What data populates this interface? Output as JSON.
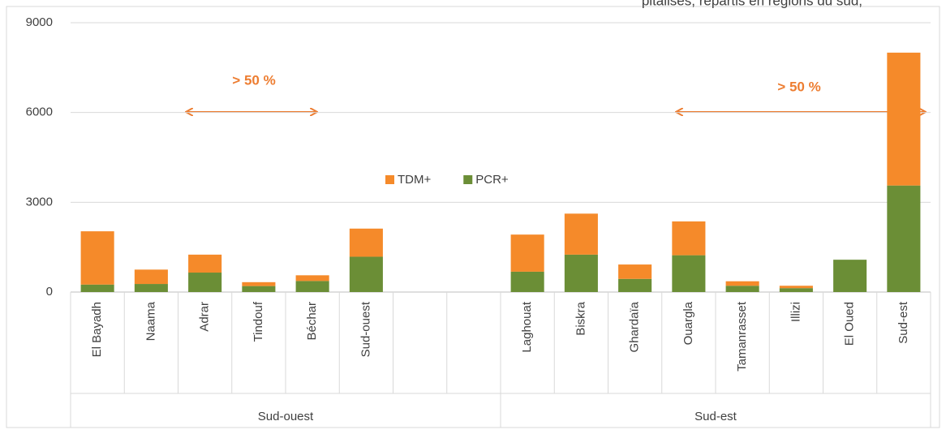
{
  "chart_data": {
    "type": "stacked_bar",
    "title": "pitalisés, répartis en régions du sud,",
    "categories": [
      "El Bayadh",
      "Naama",
      "Adrar",
      "Tindouf",
      "Béchar",
      "Sud-ouest",
      null,
      null,
      "Laghouat",
      "Biskra",
      "Ghardaïa",
      "Ouargla",
      "Tamanrasset",
      "Illizi",
      "El Oued",
      "Sud-est"
    ],
    "group_labels": [
      "Sud-ouest",
      "Sud-est"
    ],
    "series": [
      {
        "name": "PCR+",
        "color": "#6b8e36",
        "values": [
          250,
          270,
          650,
          200,
          370,
          1180,
          null,
          null,
          680,
          1250,
          440,
          1230,
          210,
          130,
          1080,
          3560
        ]
      },
      {
        "name": "TDM+",
        "color": "#f58a2a",
        "values": [
          1780,
          480,
          600,
          130,
          190,
          940,
          null,
          null,
          1240,
          1370,
          480,
          1130,
          150,
          80,
          0,
          4440
        ]
      }
    ],
    "annotations": [
      "> 50 %",
      "> 50 %"
    ],
    "ylim": [
      0,
      9000
    ],
    "yticks": [
      0,
      3000,
      6000,
      9000
    ],
    "grid": true
  }
}
